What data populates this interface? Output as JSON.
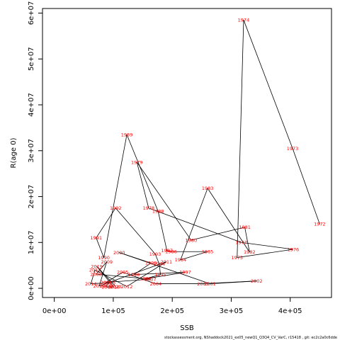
{
  "chart_data": {
    "type": "line",
    "title": "",
    "xlabel": "SSB",
    "ylabel": "R(age 0)",
    "xlim": [
      -20000,
      470000
    ],
    "ylim": [
      -2000000,
      61000000
    ],
    "x_ticks": [
      0,
      100000,
      200000,
      300000,
      400000
    ],
    "x_tick_labels": [
      "0e+00",
      "1e+05",
      "2e+05",
      "3e+05",
      "4e+05"
    ],
    "y_ticks": [
      0,
      10000000,
      20000000,
      30000000,
      40000000,
      50000000,
      60000000
    ],
    "y_tick_labels": [
      "0e+00",
      "1e+07",
      "2e+07",
      "3e+07",
      "4e+07",
      "5e+07",
      "6e+07"
    ],
    "grid": false,
    "label_color": "#ff0000",
    "line_color": "#000000",
    "points": [
      {
        "year": "1972",
        "x": 450000,
        "y": 14000000
      },
      {
        "year": "1973",
        "x": 404000,
        "y": 30500000
      },
      {
        "year": "1974",
        "x": 321000,
        "y": 58500000
      },
      {
        "year": "1975",
        "x": 310000,
        "y": 6700000
      },
      {
        "year": "1976",
        "x": 405000,
        "y": 8500000
      },
      {
        "year": "1977",
        "x": 317000,
        "y": 10000000
      },
      {
        "year": "1978",
        "x": 160000,
        "y": 17500000
      },
      {
        "year": "1979",
        "x": 140000,
        "y": 27500000
      },
      {
        "year": "1980",
        "x": 232000,
        "y": 10500000
      },
      {
        "year": "1981",
        "x": 323000,
        "y": 13300000
      },
      {
        "year": "1982",
        "x": 331000,
        "y": 7900000
      },
      {
        "year": "1983",
        "x": 260000,
        "y": 21800000
      },
      {
        "year": "1984",
        "x": 214000,
        "y": 6200000
      },
      {
        "year": "1985",
        "x": 260000,
        "y": 8000000
      },
      {
        "year": "1986",
        "x": 198000,
        "y": 8000000
      },
      {
        "year": "1987",
        "x": 191000,
        "y": 8200000
      },
      {
        "year": "1988",
        "x": 176000,
        "y": 16800000
      },
      {
        "year": "1989",
        "x": 123000,
        "y": 33500000
      },
      {
        "year": "1990",
        "x": 84000,
        "y": 6700000
      },
      {
        "year": "1991",
        "x": 71000,
        "y": 11000000
      },
      {
        "year": "1992",
        "x": 104000,
        "y": 17500000
      },
      {
        "year": "1993",
        "x": 171000,
        "y": 7500000
      },
      {
        "year": "1994",
        "x": 178000,
        "y": 5300000
      },
      {
        "year": "1995",
        "x": 180000,
        "y": 3000000
      },
      {
        "year": "1996",
        "x": 155000,
        "y": 2100000
      },
      {
        "year": "1997",
        "x": 222000,
        "y": 3500000
      },
      {
        "year": "1998",
        "x": 135000,
        "y": 3000000
      },
      {
        "year": "1999",
        "x": 164000,
        "y": 5500000
      },
      {
        "year": "2000",
        "x": 110000,
        "y": 7800000
      },
      {
        "year": "2001",
        "x": 264000,
        "y": 1000000
      },
      {
        "year": "2002",
        "x": 343000,
        "y": 1600000
      },
      {
        "year": "2003",
        "x": 252000,
        "y": 1000000
      },
      {
        "year": "2004",
        "x": 172000,
        "y": 1000000
      },
      {
        "year": "2005",
        "x": 116000,
        "y": 3500000
      },
      {
        "year": "2006",
        "x": 88000,
        "y": 1300000
      },
      {
        "year": "2007",
        "x": 163000,
        "y": 2000000
      },
      {
        "year": "2008",
        "x": 71000,
        "y": 3100000
      },
      {
        "year": "2009",
        "x": 89000,
        "y": 5800000
      },
      {
        "year": "2010",
        "x": 76000,
        "y": 500000
      },
      {
        "year": "2011",
        "x": 190000,
        "y": 5800000
      },
      {
        "year": "2012",
        "x": 123000,
        "y": 400000
      },
      {
        "year": "2013",
        "x": 69000,
        "y": 4000000
      },
      {
        "year": "2014",
        "x": 62000,
        "y": 1000000
      },
      {
        "year": "2015",
        "x": 94000,
        "y": 1200000
      },
      {
        "year": "2016",
        "x": 87000,
        "y": 500000
      },
      {
        "year": "2017",
        "x": 90000,
        "y": 300000
      },
      {
        "year": "2018",
        "x": 101000,
        "y": 300000
      },
      {
        "year": "2019",
        "x": 72000,
        "y": 4800000
      },
      {
        "year": "2020",
        "x": 104000,
        "y": 400000
      }
    ]
  },
  "footer_text": "stockassessment.org,  NShaddock2021_ex05_newQ1_Q3Q4_CV_VarC,  r15418  ,  git:  ec2c2a0c6dde"
}
